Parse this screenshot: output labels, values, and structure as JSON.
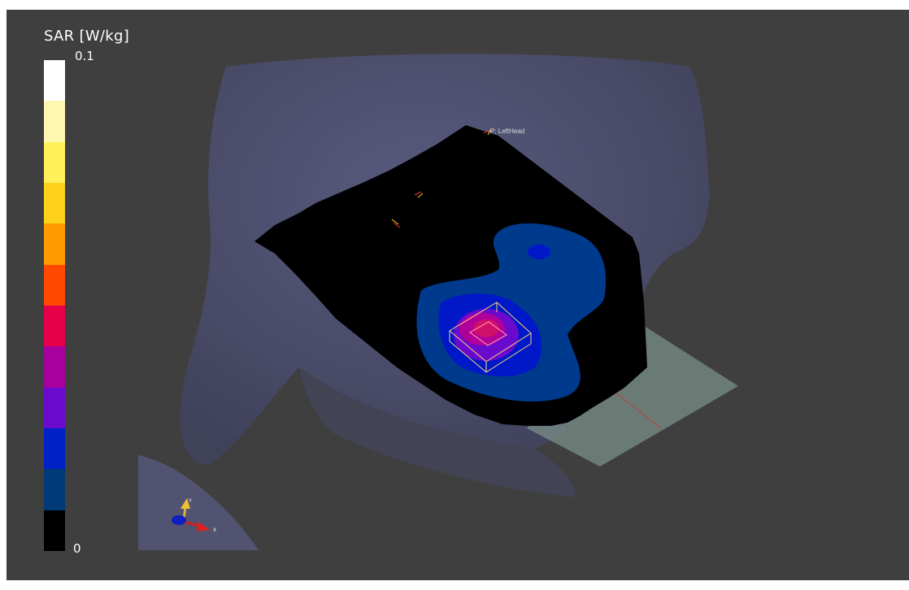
{
  "legend": {
    "title": "SAR [W/kg]",
    "max_label": "0.1",
    "min_label": "0",
    "colors": [
      "#ffffff",
      "#fff7b0",
      "#fff05a",
      "#ffd21a",
      "#ff9a00",
      "#ff4a00",
      "#e6004a",
      "#a8009e",
      "#6a0acc",
      "#0020c8",
      "#003a78",
      "#000000"
    ]
  },
  "scene": {
    "probe_label": "P: LeftHead",
    "axis_labels": {
      "y": "Y",
      "x": "X"
    },
    "colors": {
      "background": "#3f3f3f",
      "head": "#4e5070",
      "measurement_area": "#000000",
      "phantom_plate": "#7a8f88",
      "contour_outer": "#003a8c",
      "contour_mid": "#0018c8",
      "contour_inner": "#6a0acc",
      "contour_hot": "#b0009a",
      "peak_box": "#ffd27a"
    }
  }
}
